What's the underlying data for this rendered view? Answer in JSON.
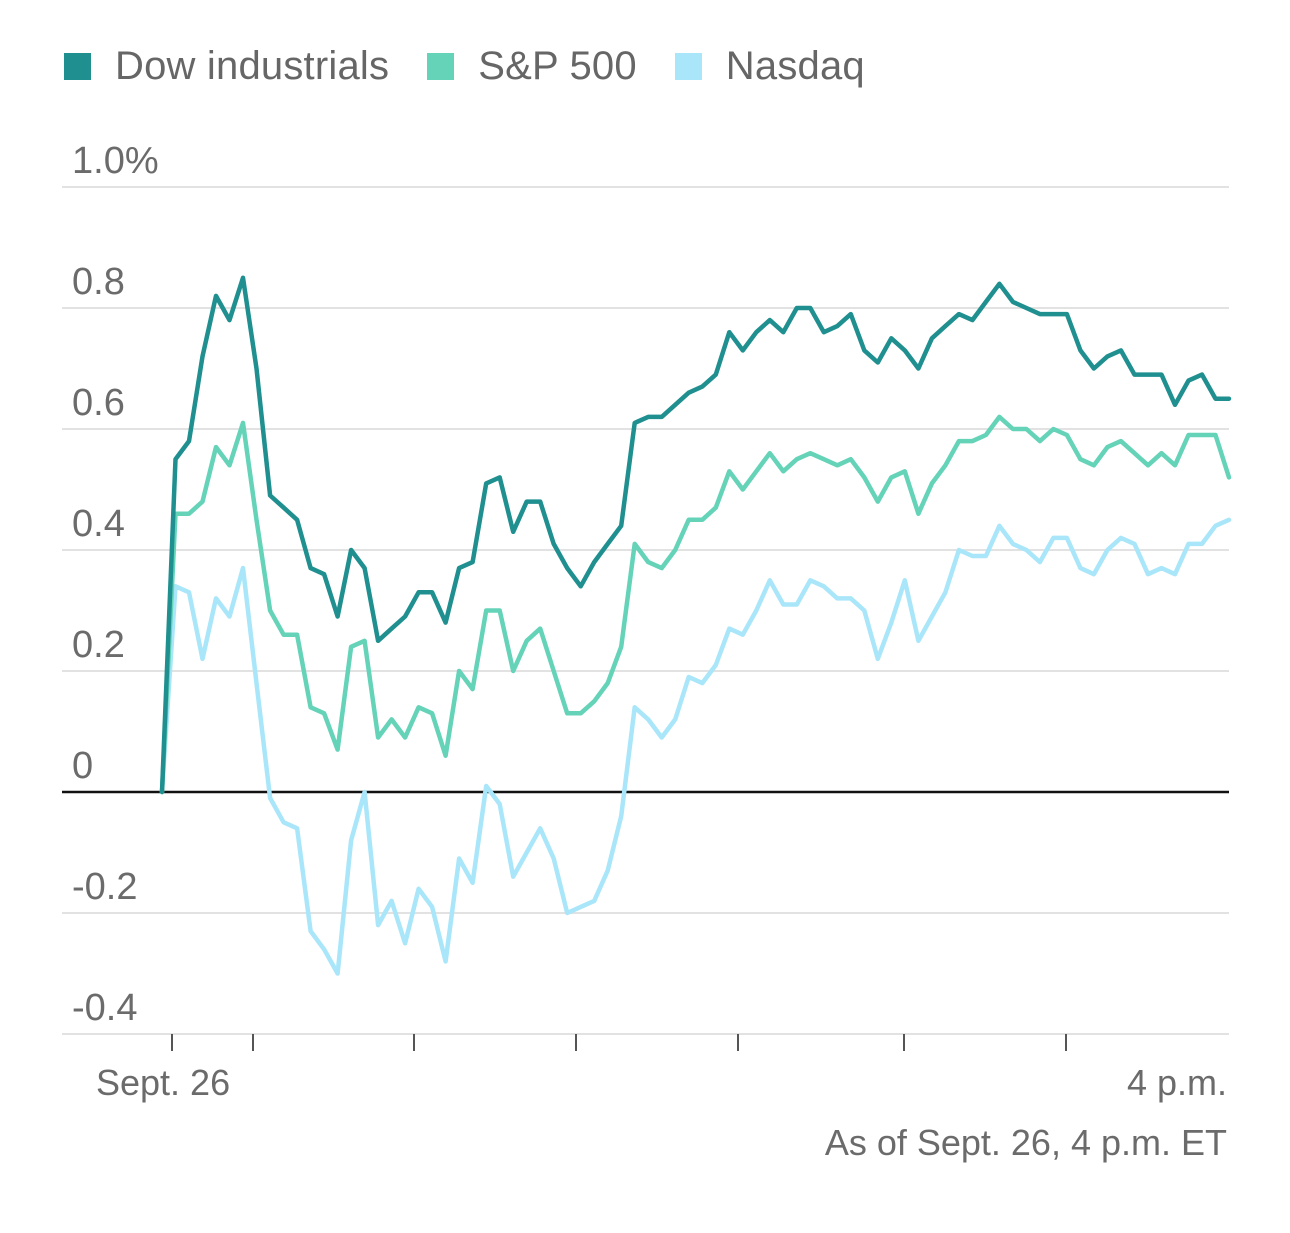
{
  "legend": [
    {
      "label": "Dow industrials",
      "color": "#1f8f8f"
    },
    {
      "label": "S&P 500",
      "color": "#64d3b8"
    },
    {
      "label": "Nasdaq",
      "color": "#a9e6fa"
    }
  ],
  "footnote": "As of Sept. 26, 4 p.m. ET",
  "chart_data": {
    "type": "line",
    "ylim": [
      -0.4,
      1.0
    ],
    "y_ticks": [
      {
        "value": 1.0,
        "label": "1.0%"
      },
      {
        "value": 0.8,
        "label": "0.8"
      },
      {
        "value": 0.6,
        "label": "0.6"
      },
      {
        "value": 0.4,
        "label": "0.4"
      },
      {
        "value": 0.2,
        "label": "0.2"
      },
      {
        "value": 0,
        "label": "0"
      },
      {
        "value": -0.2,
        "label": "-0.2"
      },
      {
        "value": -0.4,
        "label": "-0.4"
      }
    ],
    "x_tick_labels": [
      {
        "label": "Sept. 26",
        "align": "start"
      },
      {
        "label": "4 p.m.",
        "align": "end"
      }
    ],
    "grid": true,
    "zero_line": true,
    "series": [
      {
        "name": "Dow industrials",
        "color": "#1f8f8f",
        "values": [
          0.0,
          0.55,
          0.58,
          0.72,
          0.82,
          0.78,
          0.85,
          0.7,
          0.49,
          0.47,
          0.45,
          0.37,
          0.36,
          0.29,
          0.4,
          0.37,
          0.25,
          0.27,
          0.29,
          0.33,
          0.33,
          0.28,
          0.37,
          0.38,
          0.51,
          0.52,
          0.43,
          0.48,
          0.48,
          0.41,
          0.37,
          0.34,
          0.38,
          0.41,
          0.44,
          0.61,
          0.62,
          0.62,
          0.64,
          0.66,
          0.67,
          0.69,
          0.76,
          0.73,
          0.76,
          0.78,
          0.76,
          0.8,
          0.8,
          0.76,
          0.77,
          0.79,
          0.73,
          0.71,
          0.75,
          0.73,
          0.7,
          0.75,
          0.77,
          0.79,
          0.78,
          0.81,
          0.84,
          0.81,
          0.8,
          0.79,
          0.79,
          0.79,
          0.73,
          0.7,
          0.72,
          0.73,
          0.69,
          0.69,
          0.69,
          0.64,
          0.68,
          0.69,
          0.65,
          0.65
        ]
      },
      {
        "name": "S&P 500",
        "color": "#64d3b8",
        "values": [
          0.0,
          0.46,
          0.46,
          0.48,
          0.57,
          0.54,
          0.61,
          0.45,
          0.3,
          0.26,
          0.26,
          0.14,
          0.13,
          0.07,
          0.24,
          0.25,
          0.09,
          0.12,
          0.09,
          0.14,
          0.13,
          0.06,
          0.2,
          0.17,
          0.3,
          0.3,
          0.2,
          0.25,
          0.27,
          0.2,
          0.13,
          0.13,
          0.15,
          0.18,
          0.24,
          0.41,
          0.38,
          0.37,
          0.4,
          0.45,
          0.45,
          0.47,
          0.53,
          0.5,
          0.53,
          0.56,
          0.53,
          0.55,
          0.56,
          0.55,
          0.54,
          0.55,
          0.52,
          0.48,
          0.52,
          0.53,
          0.46,
          0.51,
          0.54,
          0.58,
          0.58,
          0.59,
          0.62,
          0.6,
          0.6,
          0.58,
          0.6,
          0.59,
          0.55,
          0.54,
          0.57,
          0.58,
          0.56,
          0.54,
          0.56,
          0.54,
          0.59,
          0.59,
          0.59,
          0.52
        ]
      },
      {
        "name": "Nasdaq",
        "color": "#a9e6fa",
        "values": [
          0.0,
          0.34,
          0.33,
          0.22,
          0.32,
          0.29,
          0.37,
          0.18,
          -0.01,
          -0.05,
          -0.06,
          -0.23,
          -0.26,
          -0.3,
          -0.08,
          0.0,
          -0.22,
          -0.18,
          -0.25,
          -0.16,
          -0.19,
          -0.28,
          -0.11,
          -0.15,
          0.01,
          -0.02,
          -0.14,
          -0.1,
          -0.06,
          -0.11,
          -0.2,
          -0.19,
          -0.18,
          -0.13,
          -0.04,
          0.14,
          0.12,
          0.09,
          0.12,
          0.19,
          0.18,
          0.21,
          0.27,
          0.26,
          0.3,
          0.35,
          0.31,
          0.31,
          0.35,
          0.34,
          0.32,
          0.32,
          0.3,
          0.22,
          0.28,
          0.35,
          0.25,
          0.29,
          0.33,
          0.4,
          0.39,
          0.39,
          0.44,
          0.41,
          0.4,
          0.38,
          0.42,
          0.42,
          0.37,
          0.36,
          0.4,
          0.42,
          0.41,
          0.36,
          0.37,
          0.36,
          0.41,
          0.41,
          0.44,
          0.45
        ]
      }
    ]
  }
}
